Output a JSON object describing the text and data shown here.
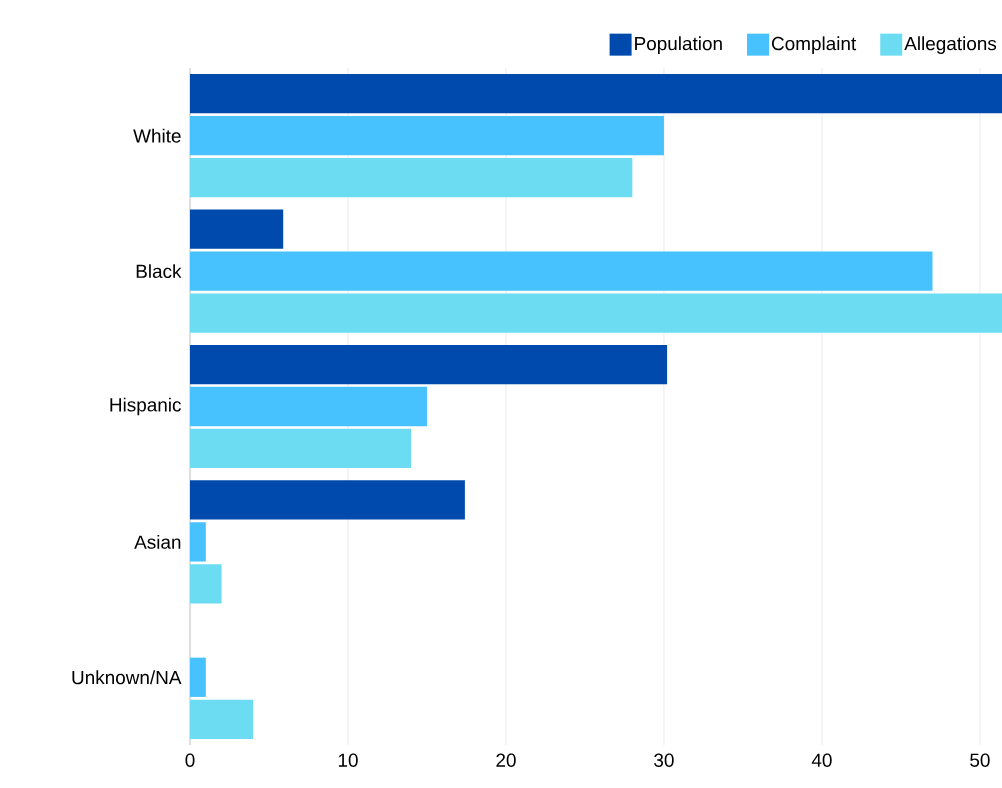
{
  "chart_data": {
    "type": "bar",
    "orientation": "horizontal",
    "categories": [
      "White",
      "Black",
      "Hispanic",
      "Asian",
      "Unknown/NA"
    ],
    "series": [
      {
        "name": "Population",
        "color": "#004aad",
        "values": [
          51.4,
          5.9,
          30.2,
          17.4,
          0
        ]
      },
      {
        "name": "Complaint",
        "color": "#47c2ff",
        "values": [
          30,
          47,
          15,
          1,
          1
        ]
      },
      {
        "name": "Allegations",
        "color": "#6cdcf2",
        "values": [
          28,
          51.4,
          14,
          2,
          4
        ]
      }
    ],
    "xlim": [
      0,
      51.4
    ],
    "xticks": [
      0,
      10,
      20,
      30,
      40,
      50
    ],
    "grid": "x",
    "legend": "top right"
  }
}
